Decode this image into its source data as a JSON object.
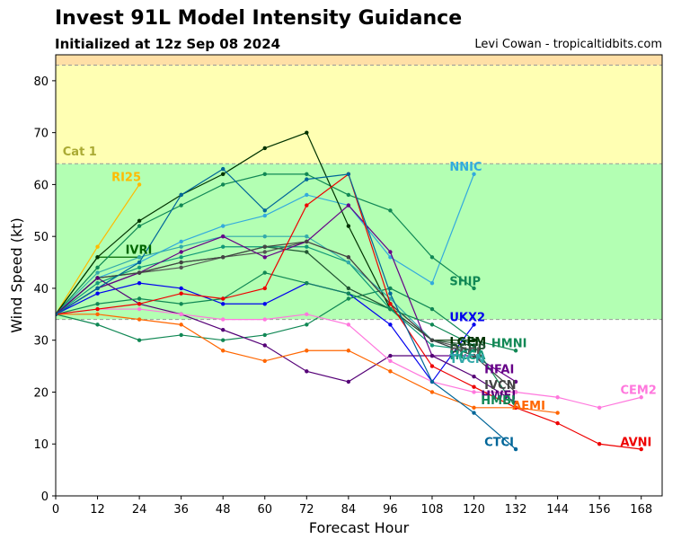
{
  "header": {
    "title": "Invest 91L Model Intensity Guidance",
    "subtitle": "Initialized at 12z Sep 08 2024",
    "credit": "Levi Cowan - tropicaltidbits.com"
  },
  "chart_data": {
    "type": "line",
    "xlabel": "Forecast Hour",
    "ylabel": "Wind Speed (kt)",
    "xlim": [
      0,
      174
    ],
    "ylim": [
      0,
      85
    ],
    "xticks": [
      0,
      12,
      24,
      36,
      48,
      60,
      72,
      84,
      96,
      108,
      120,
      132,
      144,
      156,
      168
    ],
    "yticks": [
      0,
      10,
      20,
      30,
      40,
      50,
      60,
      70,
      80
    ],
    "bands": [
      {
        "from": 0,
        "to": 34,
        "color": "#ffffff"
      },
      {
        "from": 34,
        "to": 64,
        "color": "#b3ffb3"
      },
      {
        "from": 64,
        "to": 83,
        "color": "#ffffb3"
      },
      {
        "from": 83,
        "to": 85,
        "color": "#ffdfa6"
      }
    ],
    "threshold_lines": [
      34,
      64,
      83
    ],
    "band_labels": [
      {
        "text": "Cat 1",
        "x": 2,
        "y": 66.5,
        "color": "#aaaa33"
      }
    ],
    "series": [
      {
        "name": "RI25",
        "color": "#ffbb00",
        "x": [
          0,
          12,
          24
        ],
        "y": [
          35,
          48,
          60
        ],
        "label_x": 16,
        "label_y": 61.5
      },
      {
        "name": "IVRI",
        "color": "#006600",
        "x": [
          0,
          12,
          24
        ],
        "y": [
          35,
          46,
          46
        ],
        "label_x": 20,
        "label_y": 47.5
      },
      {
        "name": "NNIC",
        "color": "#33aadd",
        "x": [
          0,
          12,
          24,
          36,
          48,
          60,
          72,
          84,
          96,
          108,
          120
        ],
        "y": [
          35,
          42,
          45,
          49,
          52,
          54,
          58,
          56,
          46,
          41,
          62
        ],
        "label_x": 113,
        "label_y": 63.5
      },
      {
        "name": "SHIP",
        "color": "#118855",
        "x": [
          0,
          12,
          24,
          36,
          48,
          60,
          72,
          84,
          96,
          108,
          120
        ],
        "y": [
          35,
          44,
          52,
          56,
          60,
          62,
          62,
          58,
          55,
          46,
          40
        ],
        "label_x": 113,
        "label_y": 41.5
      },
      {
        "name": "UKX2",
        "color": "#0000ee",
        "x": [
          0,
          12,
          24,
          36,
          48,
          60,
          72,
          84,
          96,
          108,
          120
        ],
        "y": [
          35,
          39,
          41,
          40,
          37,
          37,
          41,
          39,
          33,
          22,
          33
        ],
        "label_x": 113,
        "label_y": 34.5
      },
      {
        "name": "HMNI",
        "color": "#118855",
        "x": [
          0,
          12,
          24,
          36,
          48,
          60,
          72,
          84,
          96,
          108,
          120,
          132
        ],
        "y": [
          35,
          33,
          30,
          31,
          30,
          31,
          33,
          38,
          40,
          36,
          30,
          28
        ],
        "label_x": 125,
        "label_y": 29.5
      },
      {
        "name": "LGEM",
        "color": "#003300",
        "x": [
          0,
          12,
          24,
          36,
          48,
          60,
          72,
          84,
          96,
          108,
          120
        ],
        "y": [
          35,
          46,
          53,
          58,
          62,
          67,
          70,
          52,
          36,
          30,
          30
        ],
        "label_x": 113,
        "label_y": 29.8
      },
      {
        "name": "DSHP",
        "color": "#225533",
        "x": [
          0,
          12,
          24,
          36,
          48,
          60,
          72,
          84,
          96,
          108,
          120
        ],
        "y": [
          35,
          42,
          43,
          45,
          46,
          48,
          47,
          40,
          36,
          30,
          29
        ],
        "label_x": 113,
        "label_y": 28.5
      },
      {
        "name": "OFCL",
        "color": "#555555",
        "x": [
          0,
          12,
          24,
          36,
          48,
          60,
          72,
          84,
          96,
          108,
          120
        ],
        "y": [
          35,
          40,
          43,
          44,
          46,
          47,
          49,
          46,
          37,
          30,
          28
        ],
        "label_x": 113,
        "label_y": 27.8
      },
      {
        "name": "HCCA",
        "color": "#119977",
        "x": [
          0,
          12,
          24,
          36,
          48,
          60,
          72,
          84,
          96,
          108,
          120
        ],
        "y": [
          35,
          41,
          44,
          46,
          48,
          48,
          48,
          45,
          36,
          29,
          28
        ],
        "label_x": 113,
        "label_y": 27.2
      },
      {
        "name": "TVCN",
        "color": "#33aaaa",
        "x": [
          0,
          12,
          24,
          36,
          48,
          60,
          72,
          84,
          96,
          108,
          120
        ],
        "y": [
          35,
          43,
          46,
          48,
          50,
          50,
          50,
          45,
          38,
          30,
          27
        ],
        "label_x": 113,
        "label_y": 26.5
      },
      {
        "name": "HFAI",
        "color": "#660088",
        "x": [
          0,
          12,
          24,
          36,
          48,
          60,
          72,
          84,
          96,
          108,
          120,
          132
        ],
        "y": [
          35,
          40,
          43,
          47,
          50,
          46,
          49,
          56,
          47,
          27,
          27,
          22
        ],
        "label_x": 123,
        "label_y": 24.5
      },
      {
        "name": "IVCN",
        "color": "#444444",
        "x": [
          0,
          12,
          24,
          36,
          48,
          60,
          72,
          84,
          96,
          108,
          120,
          132
        ],
        "y": [
          35,
          42,
          43,
          45,
          46,
          48,
          49,
          46,
          37,
          30,
          27,
          20
        ],
        "label_x": 123,
        "label_y": 21.5
      },
      {
        "name": "HWFI",
        "color": "#550077",
        "x": [
          0,
          12,
          24,
          36,
          48,
          60,
          72,
          84,
          96,
          108,
          120,
          132
        ],
        "y": [
          35,
          42,
          37,
          35,
          32,
          29,
          24,
          22,
          27,
          27,
          23,
          18
        ],
        "label_x": 122,
        "label_y": 19.5
      },
      {
        "name": "HMBI",
        "color": "#118855",
        "x": [
          0,
          12,
          24,
          36,
          48,
          60,
          72,
          84,
          96,
          108,
          120,
          132
        ],
        "y": [
          35,
          37,
          38,
          37,
          38,
          43,
          41,
          39,
          36,
          33,
          29,
          17
        ],
        "label_x": 122,
        "label_y": 18.5
      },
      {
        "name": "AEMI",
        "color": "#ff6600",
        "x": [
          0,
          12,
          24,
          36,
          48,
          60,
          72,
          84,
          96,
          108,
          120,
          132,
          144
        ],
        "y": [
          35,
          35,
          34,
          33,
          28,
          26,
          28,
          28,
          24,
          20,
          17,
          17,
          16
        ],
        "label_x": 131,
        "label_y": 17.5
      },
      {
        "name": "CEM2",
        "color": "#ff77dd",
        "x": [
          0,
          12,
          24,
          36,
          48,
          60,
          72,
          84,
          96,
          108,
          120,
          132,
          144,
          156,
          168
        ],
        "y": [
          35,
          36,
          36,
          35,
          34,
          34,
          35,
          33,
          26,
          22,
          20,
          20,
          19,
          17,
          19
        ],
        "label_x": 162,
        "label_y": 20.5
      },
      {
        "name": "AVNI",
        "color": "#ee0000",
        "x": [
          0,
          12,
          24,
          36,
          48,
          60,
          72,
          84,
          96,
          108,
          120,
          132,
          144,
          156,
          168
        ],
        "y": [
          35,
          36,
          37,
          39,
          38,
          40,
          56,
          62,
          37,
          25,
          21,
          17,
          14,
          10,
          9
        ],
        "label_x": 162,
        "label_y": 10.5
      },
      {
        "name": "CTCI",
        "color": "#006699",
        "x": [
          0,
          12,
          24,
          36,
          48,
          60,
          72,
          84,
          96,
          108,
          120,
          132
        ],
        "y": [
          35,
          40,
          45,
          58,
          63,
          55,
          61,
          62,
          39,
          22,
          16,
          9
        ],
        "label_x": 123,
        "label_y": 10.5
      }
    ]
  }
}
